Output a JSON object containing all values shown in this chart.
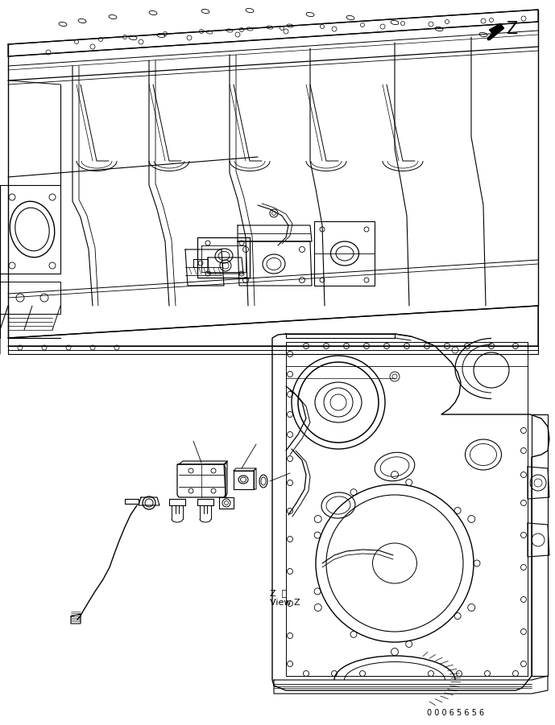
{
  "background_color": "#ffffff",
  "line_color": "#000000",
  "fig_width": 6.89,
  "fig_height": 9.01,
  "dpi": 100,
  "part_number": "00065656",
  "view_label_text1": "Z  視",
  "view_label_text2": "View Z",
  "arrow_label": "Z"
}
